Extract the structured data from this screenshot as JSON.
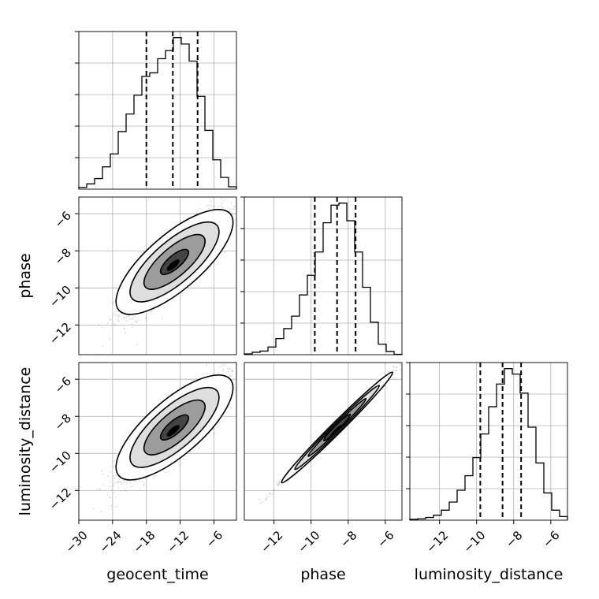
{
  "chart_data": {
    "type": "corner",
    "grid": true,
    "variables": [
      "geocent_time",
      "phase",
      "luminosity_distance"
    ],
    "ranges": {
      "geocent_time": [
        -30,
        -2
      ],
      "phase": [
        -13.6,
        -5.1
      ],
      "luminosity_distance": [
        -13.6,
        -5.1
      ]
    },
    "ticks": {
      "geocent_time": [
        "−30",
        "−24",
        "−18",
        "−12",
        "−6"
      ],
      "phase": [
        "−12",
        "−10",
        "−8",
        "−6"
      ],
      "luminosity_distance": [
        "−12",
        "−10",
        "−8",
        "−6"
      ]
    },
    "tick_values": {
      "geocent_time": [
        -30,
        -24,
        -18,
        -12,
        -6
      ],
      "phase": [
        -12,
        -10,
        -8,
        -6
      ],
      "luminosity_distance": [
        -12,
        -10,
        -8,
        -6
      ]
    },
    "histograms": [
      {
        "variable": "geocent_time",
        "quantiles": [
          -18.0,
          -13.3,
          -8.9
        ],
        "bin_edges": [
          -30,
          -28.6,
          -27.2,
          -25.8,
          -24.4,
          -23.0,
          -21.6,
          -20.2,
          -18.8,
          -17.4,
          -16.0,
          -14.6,
          -13.2,
          -11.8,
          -10.4,
          -9.0,
          -7.6,
          -6.2,
          -4.8,
          -3.4,
          -2.0
        ],
        "counts": [
          3,
          9,
          18,
          38,
          60,
          98,
          128,
          160,
          192,
          198,
          222,
          236,
          258,
          247,
          218,
          158,
          100,
          50,
          20,
          4
        ]
      },
      {
        "variable": "phase",
        "quantiles": [
          -9.8,
          -8.6,
          -7.6
        ],
        "bin_edges": [
          -13.6,
          -13.175,
          -12.75,
          -12.325,
          -11.9,
          -11.475,
          -11.05,
          -10.625,
          -10.2,
          -9.775,
          -9.35,
          -8.925,
          -8.5,
          -8.075,
          -7.65,
          -7.225,
          -6.8,
          -6.375,
          -5.95,
          -5.525,
          -5.1
        ],
        "counts": [
          2,
          6,
          9,
          19,
          40,
          65,
          96,
          149,
          198,
          256,
          329,
          373,
          378,
          334,
          256,
          168,
          81,
          26,
          8,
          1
        ]
      },
      {
        "variable": "luminosity_distance",
        "quantiles": [
          -9.8,
          -8.6,
          -7.6
        ],
        "bin_edges": [
          -13.6,
          -13.175,
          -12.75,
          -12.325,
          -11.9,
          -11.475,
          -11.05,
          -10.625,
          -10.2,
          -9.775,
          -9.35,
          -8.925,
          -8.5,
          -8.075,
          -7.65,
          -7.225,
          -6.8,
          -6.375,
          -5.95,
          -5.525,
          -5.1
        ],
        "counts": [
          2,
          3,
          6,
          11,
          22,
          40,
          66,
          98,
          138,
          190,
          250,
          300,
          334,
          322,
          280,
          205,
          126,
          60,
          22,
          8
        ]
      }
    ],
    "pairs": [
      {
        "x": "geocent_time",
        "y": "phase",
        "mean": [
          -13,
          -8.6
        ],
        "std": [
          4.3,
          1.3
        ],
        "corr": 0.87
      },
      {
        "x": "geocent_time",
        "y": "luminosity_distance",
        "mean": [
          -13,
          -8.6
        ],
        "std": [
          4.3,
          1.3
        ],
        "corr": 0.87
      },
      {
        "x": "phase",
        "y": "luminosity_distance",
        "mean": [
          -8.6,
          -8.6
        ],
        "std": [
          1.3,
          1.3
        ],
        "corr": 0.995
      }
    ]
  }
}
